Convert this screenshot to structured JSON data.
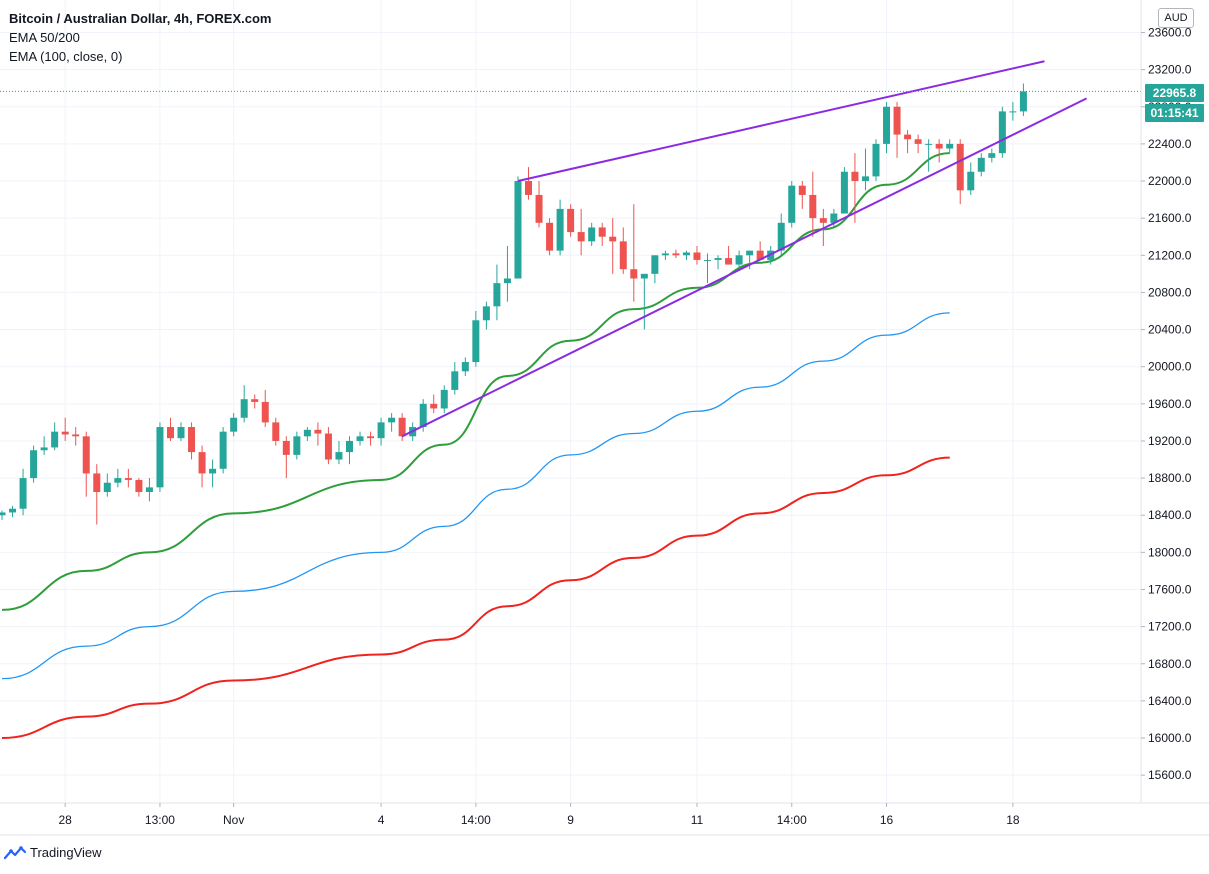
{
  "header": {
    "title": "Bitcoin / Australian Dollar, 4h, FOREX.com",
    "indicator_1": "EMA 50/200",
    "indicator_2": "EMA (100, close, 0)"
  },
  "price_axis": {
    "unit": "AUD",
    "last_price": "22965.8",
    "countdown": "01:15:41",
    "ticks": [
      {
        "v": 23600,
        "label": "23600.0"
      },
      {
        "v": 23200,
        "label": "23200.0"
      },
      {
        "v": 22800,
        "label": "22800.0"
      },
      {
        "v": 22400,
        "label": "22400.0"
      },
      {
        "v": 22000,
        "label": "22000.0"
      },
      {
        "v": 21600,
        "label": "21600.0"
      },
      {
        "v": 21200,
        "label": "21200.0"
      },
      {
        "v": 20800,
        "label": "20800.0"
      },
      {
        "v": 20400,
        "label": "20400.0"
      },
      {
        "v": 20000,
        "label": "20000.0"
      },
      {
        "v": 19600,
        "label": "19600.0"
      },
      {
        "v": 19200,
        "label": "19200.0"
      },
      {
        "v": 18800,
        "label": "18800.0"
      },
      {
        "v": 18400,
        "label": "18400.0"
      },
      {
        "v": 18000,
        "label": "18000.0"
      },
      {
        "v": 17600,
        "label": "17600.0"
      },
      {
        "v": 17200,
        "label": "17200.0"
      },
      {
        "v": 16800,
        "label": "16800.0"
      },
      {
        "v": 16400,
        "label": "16400.0"
      },
      {
        "v": 16000,
        "label": "16000.0"
      },
      {
        "v": 15600,
        "label": "15600.0"
      }
    ]
  },
  "footer": {
    "brand": "TradingView"
  },
  "colors": {
    "up": "#26a69a",
    "down": "#ef5350",
    "ema50": "#2e9e3a",
    "ema100": "#2196f3",
    "ema200": "#f0231e",
    "trendline": "#8a2be2",
    "grid": "#f0f3fa",
    "axis_text": "#131722"
  },
  "chart_data": {
    "type": "candlestick",
    "symbol": "Bitcoin / Australian Dollar",
    "timeframe": "4h",
    "y_unit": "AUD",
    "ylim": [
      15300,
      23950
    ],
    "x_ticks": [
      {
        "bar": 6,
        "label": "28"
      },
      {
        "bar": 15,
        "label": "13:00"
      },
      {
        "bar": 22,
        "label": "Nov"
      },
      {
        "bar": 36,
        "label": "4"
      },
      {
        "bar": 45,
        "label": "14:00"
      },
      {
        "bar": 54,
        "label": "9"
      },
      {
        "bar": 66,
        "label": "11"
      },
      {
        "bar": 75,
        "label": "14:00"
      },
      {
        "bar": 84,
        "label": "16"
      },
      {
        "bar": 96,
        "label": "18"
      }
    ],
    "candles": [
      {
        "o": 18400,
        "h": 18450,
        "l": 18350,
        "c": 18430
      },
      {
        "o": 18430,
        "h": 18500,
        "l": 18380,
        "c": 18470
      },
      {
        "o": 18470,
        "h": 18900,
        "l": 18400,
        "c": 18800
      },
      {
        "o": 18800,
        "h": 19150,
        "l": 18750,
        "c": 19100
      },
      {
        "o": 19100,
        "h": 19250,
        "l": 19050,
        "c": 19130
      },
      {
        "o": 19130,
        "h": 19400,
        "l": 19100,
        "c": 19300
      },
      {
        "o": 19300,
        "h": 19450,
        "l": 19200,
        "c": 19270
      },
      {
        "o": 19270,
        "h": 19350,
        "l": 19150,
        "c": 19250
      },
      {
        "o": 19250,
        "h": 19300,
        "l": 18600,
        "c": 18850
      },
      {
        "o": 18850,
        "h": 18950,
        "l": 18300,
        "c": 18650
      },
      {
        "o": 18650,
        "h": 18850,
        "l": 18600,
        "c": 18750
      },
      {
        "o": 18750,
        "h": 18900,
        "l": 18700,
        "c": 18800
      },
      {
        "o": 18800,
        "h": 18900,
        "l": 18700,
        "c": 18780
      },
      {
        "o": 18780,
        "h": 18800,
        "l": 18600,
        "c": 18650
      },
      {
        "o": 18650,
        "h": 18800,
        "l": 18550,
        "c": 18700
      },
      {
        "o": 18700,
        "h": 19400,
        "l": 18650,
        "c": 19350
      },
      {
        "o": 19350,
        "h": 19450,
        "l": 19200,
        "c": 19230
      },
      {
        "o": 19230,
        "h": 19400,
        "l": 19200,
        "c": 19350
      },
      {
        "o": 19350,
        "h": 19400,
        "l": 19000,
        "c": 19080
      },
      {
        "o": 19080,
        "h": 19150,
        "l": 18700,
        "c": 18850
      },
      {
        "o": 18850,
        "h": 19000,
        "l": 18700,
        "c": 18900
      },
      {
        "o": 18900,
        "h": 19350,
        "l": 18850,
        "c": 19300
      },
      {
        "o": 19300,
        "h": 19500,
        "l": 19250,
        "c": 19450
      },
      {
        "o": 19450,
        "h": 19800,
        "l": 19400,
        "c": 19650
      },
      {
        "o": 19650,
        "h": 19700,
        "l": 19550,
        "c": 19620
      },
      {
        "o": 19620,
        "h": 19750,
        "l": 19350,
        "c": 19400
      },
      {
        "o": 19400,
        "h": 19450,
        "l": 19150,
        "c": 19200
      },
      {
        "o": 19200,
        "h": 19250,
        "l": 18800,
        "c": 19050
      },
      {
        "o": 19050,
        "h": 19300,
        "l": 19000,
        "c": 19250
      },
      {
        "o": 19250,
        "h": 19350,
        "l": 19200,
        "c": 19320
      },
      {
        "o": 19320,
        "h": 19400,
        "l": 19150,
        "c": 19280
      },
      {
        "o": 19280,
        "h": 19350,
        "l": 18950,
        "c": 19000
      },
      {
        "o": 19000,
        "h": 19200,
        "l": 18950,
        "c": 19080
      },
      {
        "o": 19080,
        "h": 19250,
        "l": 18950,
        "c": 19200
      },
      {
        "o": 19200,
        "h": 19300,
        "l": 19150,
        "c": 19250
      },
      {
        "o": 19250,
        "h": 19300,
        "l": 19150,
        "c": 19230
      },
      {
        "o": 19230,
        "h": 19450,
        "l": 19150,
        "c": 19400
      },
      {
        "o": 19400,
        "h": 19500,
        "l": 19300,
        "c": 19450
      },
      {
        "o": 19450,
        "h": 19500,
        "l": 19200,
        "c": 19250
      },
      {
        "o": 19250,
        "h": 19400,
        "l": 19200,
        "c": 19350
      },
      {
        "o": 19350,
        "h": 19650,
        "l": 19300,
        "c": 19600
      },
      {
        "o": 19600,
        "h": 19700,
        "l": 19500,
        "c": 19550
      },
      {
        "o": 19550,
        "h": 19800,
        "l": 19500,
        "c": 19750
      },
      {
        "o": 19750,
        "h": 20050,
        "l": 19700,
        "c": 19950
      },
      {
        "o": 19950,
        "h": 20100,
        "l": 19900,
        "c": 20050
      },
      {
        "o": 20050,
        "h": 20600,
        "l": 20000,
        "c": 20500
      },
      {
        "o": 20500,
        "h": 20700,
        "l": 20400,
        "c": 20650
      },
      {
        "o": 20650,
        "h": 21100,
        "l": 20500,
        "c": 20900
      },
      {
        "o": 20900,
        "h": 21300,
        "l": 20700,
        "c": 20950
      },
      {
        "o": 20950,
        "h": 22050,
        "l": 20950,
        "c": 22000
      },
      {
        "o": 22000,
        "h": 22150,
        "l": 21800,
        "c": 21850
      },
      {
        "o": 21850,
        "h": 22000,
        "l": 21500,
        "c": 21550
      },
      {
        "o": 21550,
        "h": 21600,
        "l": 21200,
        "c": 21250
      },
      {
        "o": 21250,
        "h": 21800,
        "l": 21200,
        "c": 21700
      },
      {
        "o": 21700,
        "h": 21750,
        "l": 21400,
        "c": 21450
      },
      {
        "o": 21450,
        "h": 21700,
        "l": 21200,
        "c": 21350
      },
      {
        "o": 21350,
        "h": 21550,
        "l": 21300,
        "c": 21500
      },
      {
        "o": 21500,
        "h": 21550,
        "l": 21300,
        "c": 21400
      },
      {
        "o": 21400,
        "h": 21600,
        "l": 21000,
        "c": 21350
      },
      {
        "o": 21350,
        "h": 21500,
        "l": 21000,
        "c": 21050
      },
      {
        "o": 21050,
        "h": 21750,
        "l": 20700,
        "c": 20950
      },
      {
        "o": 20950,
        "h": 21000,
        "l": 20400,
        "c": 21000
      },
      {
        "o": 21000,
        "h": 21200,
        "l": 20900,
        "c": 21200
      },
      {
        "o": 21200,
        "h": 21250,
        "l": 21150,
        "c": 21220
      },
      {
        "o": 21220,
        "h": 21260,
        "l": 21170,
        "c": 21200
      },
      {
        "o": 21200,
        "h": 21250,
        "l": 21150,
        "c": 21230
      },
      {
        "o": 21230,
        "h": 21300,
        "l": 21100,
        "c": 21150
      },
      {
        "o": 21150,
        "h": 21220,
        "l": 20900,
        "c": 21150
      },
      {
        "o": 21150,
        "h": 21200,
        "l": 21050,
        "c": 21170
      },
      {
        "o": 21170,
        "h": 21300,
        "l": 21100,
        "c": 21100
      },
      {
        "o": 21100,
        "h": 21250,
        "l": 21050,
        "c": 21200
      },
      {
        "o": 21200,
        "h": 21250,
        "l": 21050,
        "c": 21250
      },
      {
        "o": 21250,
        "h": 21350,
        "l": 21150,
        "c": 21150
      },
      {
        "o": 21150,
        "h": 21300,
        "l": 21100,
        "c": 21250
      },
      {
        "o": 21250,
        "h": 21650,
        "l": 21200,
        "c": 21550
      },
      {
        "o": 21550,
        "h": 22000,
        "l": 21500,
        "c": 21950
      },
      {
        "o": 21950,
        "h": 22000,
        "l": 21700,
        "c": 21850
      },
      {
        "o": 21850,
        "h": 22100,
        "l": 21400,
        "c": 21600
      },
      {
        "o": 21600,
        "h": 21700,
        "l": 21300,
        "c": 21550
      },
      {
        "o": 21550,
        "h": 21700,
        "l": 21500,
        "c": 21650
      },
      {
        "o": 21650,
        "h": 22150,
        "l": 21650,
        "c": 22100
      },
      {
        "o": 22100,
        "h": 22300,
        "l": 21550,
        "c": 22000
      },
      {
        "o": 22000,
        "h": 22350,
        "l": 21900,
        "c": 22050
      },
      {
        "o": 22050,
        "h": 22450,
        "l": 22000,
        "c": 22400
      },
      {
        "o": 22400,
        "h": 22850,
        "l": 22300,
        "c": 22800
      },
      {
        "o": 22800,
        "h": 22850,
        "l": 22250,
        "c": 22500
      },
      {
        "o": 22500,
        "h": 22550,
        "l": 22300,
        "c": 22450
      },
      {
        "o": 22450,
        "h": 22500,
        "l": 22300,
        "c": 22400
      },
      {
        "o": 22400,
        "h": 22450,
        "l": 22100,
        "c": 22400
      },
      {
        "o": 22400,
        "h": 22450,
        "l": 22200,
        "c": 22350
      },
      {
        "o": 22350,
        "h": 22450,
        "l": 22300,
        "c": 22400
      },
      {
        "o": 22400,
        "h": 22450,
        "l": 21750,
        "c": 21900
      },
      {
        "o": 21900,
        "h": 22200,
        "l": 21850,
        "c": 22100
      },
      {
        "o": 22100,
        "h": 22300,
        "l": 22050,
        "c": 22250
      },
      {
        "o": 22250,
        "h": 22350,
        "l": 22200,
        "c": 22300
      },
      {
        "o": 22300,
        "h": 22800,
        "l": 22250,
        "c": 22750
      },
      {
        "o": 22750,
        "h": 22850,
        "l": 22650,
        "c": 22750
      },
      {
        "o": 22750,
        "h": 23050,
        "l": 22700,
        "c": 22966
      }
    ],
    "series": [
      {
        "name": "EMA 50",
        "color": "#2e9e3a",
        "points": [
          [
            0,
            17380
          ],
          [
            8,
            17800
          ],
          [
            14,
            18000
          ],
          [
            22,
            18420
          ],
          [
            36,
            18780
          ],
          [
            42,
            19160
          ],
          [
            48,
            19900
          ],
          [
            54,
            20280
          ],
          [
            60,
            20620
          ],
          [
            66,
            20850
          ],
          [
            72,
            21120
          ],
          [
            78,
            21480
          ],
          [
            84,
            21960
          ],
          [
            90,
            22300
          ]
        ]
      },
      {
        "name": "EMA 100",
        "color": "#2196f3",
        "points": [
          [
            0,
            16640
          ],
          [
            8,
            16990
          ],
          [
            14,
            17200
          ],
          [
            22,
            17580
          ],
          [
            36,
            18000
          ],
          [
            42,
            18280
          ],
          [
            48,
            18680
          ],
          [
            54,
            19050
          ],
          [
            60,
            19280
          ],
          [
            66,
            19520
          ],
          [
            72,
            19780
          ],
          [
            78,
            20060
          ],
          [
            84,
            20340
          ],
          [
            90,
            20580
          ]
        ]
      },
      {
        "name": "EMA 200",
        "color": "#f0231e",
        "points": [
          [
            0,
            16000
          ],
          [
            8,
            16230
          ],
          [
            14,
            16370
          ],
          [
            22,
            16620
          ],
          [
            36,
            16900
          ],
          [
            42,
            17060
          ],
          [
            48,
            17420
          ],
          [
            54,
            17700
          ],
          [
            60,
            17940
          ],
          [
            66,
            18180
          ],
          [
            72,
            18420
          ],
          [
            78,
            18640
          ],
          [
            84,
            18830
          ],
          [
            90,
            19020
          ]
        ]
      }
    ],
    "trendlines": [
      {
        "name": "upper",
        "color": "#8a2be2",
        "from": [
          49,
          22000
        ],
        "to": [
          99,
          23290
        ]
      },
      {
        "name": "lower",
        "color": "#8a2be2",
        "from": [
          38,
          19250
        ],
        "to": [
          103,
          22890
        ]
      }
    ],
    "current_price_line": 22965.8
  }
}
